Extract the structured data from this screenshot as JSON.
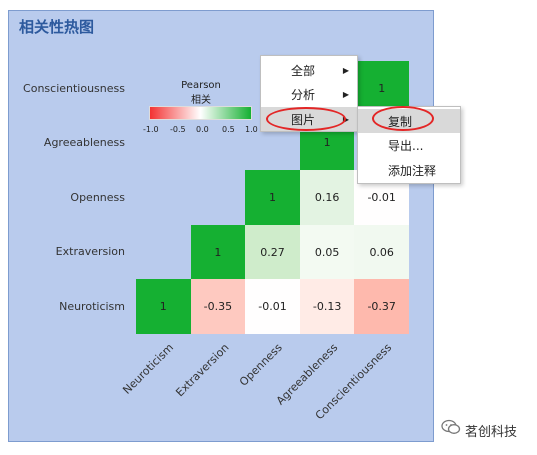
{
  "panel": {
    "title": "相关性热图"
  },
  "legend": {
    "title_line1": "Pearson",
    "title_line2": "相关",
    "ticks": [
      "-1.0",
      "-0.5",
      "0.0",
      "0.5",
      "1.0"
    ]
  },
  "heatmap": {
    "row_labels": [
      "Conscientiousness",
      "Agreeableness",
      "Openness",
      "Extraversion",
      "Neuroticism"
    ],
    "col_labels": [
      "Neuroticism",
      "Extraversion",
      "Openness",
      "Agreeableness",
      "Conscientiousness"
    ],
    "cells": [
      {
        "row": 0,
        "col": 4,
        "value": "1",
        "color": "#15b032"
      },
      {
        "row": 1,
        "col": 3,
        "value": "1",
        "color": "#15b032"
      },
      {
        "row": 2,
        "col": 2,
        "value": "1",
        "color": "#15b032"
      },
      {
        "row": 2,
        "col": 3,
        "value": "0.16",
        "color": "#e3f3e2"
      },
      {
        "row": 2,
        "col": 4,
        "value": "-0.01",
        "color": "#fffefe"
      },
      {
        "row": 3,
        "col": 1,
        "value": "1",
        "color": "#15b032"
      },
      {
        "row": 3,
        "col": 2,
        "value": "0.27",
        "color": "#cfeccb"
      },
      {
        "row": 3,
        "col": 3,
        "value": "0.05",
        "color": "#f3faf2"
      },
      {
        "row": 3,
        "col": 4,
        "value": "0.06",
        "color": "#f1f9f0"
      },
      {
        "row": 4,
        "col": 0,
        "value": "1",
        "color": "#15b032"
      },
      {
        "row": 4,
        "col": 1,
        "value": "-0.35",
        "color": "#fec9c0"
      },
      {
        "row": 4,
        "col": 2,
        "value": "-0.01",
        "color": "#fffefe"
      },
      {
        "row": 4,
        "col": 3,
        "value": "-0.13",
        "color": "#ffebe6"
      },
      {
        "row": 4,
        "col": 4,
        "value": "-0.37",
        "color": "#feb9ad"
      }
    ]
  },
  "context_menu": {
    "items": [
      {
        "label": "全部",
        "has_submenu": true
      },
      {
        "label": "分析",
        "has_submenu": true
      },
      {
        "label": "图片",
        "has_submenu": true
      }
    ]
  },
  "submenu": {
    "items": [
      {
        "label": "复制"
      },
      {
        "label": "导出..."
      },
      {
        "label": "添加注释"
      }
    ]
  },
  "watermark": {
    "text": "茗创科技"
  }
}
